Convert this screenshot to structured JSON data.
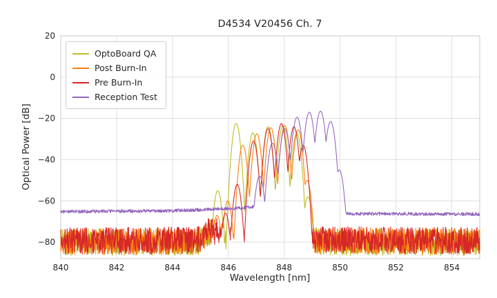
{
  "chart_data": {
    "type": "line",
    "title": "D4534 V20456 Ch. 7",
    "xlabel": "Wavelength [nm]",
    "ylabel": "Optical Power [dB]",
    "xlim": [
      840,
      855
    ],
    "ylim": [
      -88,
      20
    ],
    "x_ticks": [
      840,
      842,
      844,
      846,
      848,
      850,
      852,
      854
    ],
    "y_ticks": [
      20,
      0,
      -20,
      -40,
      -60,
      -80
    ],
    "grid": true,
    "grid_color": "#dcdcdc",
    "frame_color": "#cccccc",
    "text_color": "#262626",
    "legend_position": "upper left",
    "sample_step_nm": 0.01,
    "series": [
      {
        "name": "OptoBoard QA",
        "color": "#bcbd22",
        "mode_k": 450,
        "noise_spread_db": 13,
        "noise_floor_db": [
          [
            840,
            -80
          ],
          [
            844.9,
            -80
          ],
          [
            845.25,
            -75.5
          ],
          [
            845.65,
            -74.5
          ],
          [
            846.1,
            -79
          ],
          [
            848.95,
            -78.5
          ],
          [
            849.3,
            -80
          ],
          [
            855,
            -80
          ]
        ],
        "peaks_nm_db": [
          [
            845.62,
            -55
          ],
          [
            846.28,
            -22.5
          ],
          [
            846.88,
            -27
          ],
          [
            847.42,
            -24
          ],
          [
            847.95,
            -23.5
          ],
          [
            848.45,
            -27
          ],
          [
            848.85,
            -58
          ]
        ]
      },
      {
        "name": "Post Burn-In",
        "color": "#ff7f0e",
        "mode_k": 450,
        "noise_spread_db": 13,
        "noise_floor_db": [
          [
            840,
            -80
          ],
          [
            844.9,
            -79.5
          ],
          [
            845.3,
            -75
          ],
          [
            845.75,
            -75.5
          ],
          [
            846.2,
            -79
          ],
          [
            855,
            -79.8
          ]
        ],
        "peaks_nm_db": [
          [
            845.6,
            -67
          ],
          [
            845.98,
            -60
          ],
          [
            846.52,
            -33
          ],
          [
            847.02,
            -27.5
          ],
          [
            847.52,
            -24.5
          ],
          [
            848.02,
            -23.5
          ],
          [
            848.5,
            -25.5
          ],
          [
            848.82,
            -50
          ]
        ]
      },
      {
        "name": "Pre Burn-In",
        "color": "#d62728",
        "mode_k": 450,
        "noise_spread_db": 13,
        "noise_floor_db": [
          [
            840,
            -79.5
          ],
          [
            844.9,
            -79
          ],
          [
            845.3,
            -74.5
          ],
          [
            845.85,
            -75
          ],
          [
            846.3,
            -78.5
          ],
          [
            855,
            -79.3
          ]
        ],
        "peaks_nm_db": [
          [
            845.9,
            -66
          ],
          [
            846.32,
            -52
          ],
          [
            846.9,
            -31
          ],
          [
            847.42,
            -25
          ],
          [
            847.9,
            -22.5
          ],
          [
            848.35,
            -24
          ],
          [
            848.68,
            -33
          ]
        ]
      },
      {
        "name": "Reception Test",
        "color": "#9467bd",
        "mode_k": 380,
        "noise_spread_db": 1.6,
        "noise_floor_db": [
          [
            840,
            -65.2
          ],
          [
            844,
            -64.8
          ],
          [
            846,
            -63.8
          ],
          [
            847.05,
            -62.8
          ],
          [
            849.9,
            -63.5
          ],
          [
            850.15,
            -66.2
          ],
          [
            855,
            -66.4
          ]
        ],
        "peaks_nm_db": [
          [
            847.12,
            -48
          ],
          [
            847.58,
            -32
          ],
          [
            848.02,
            -25
          ],
          [
            848.46,
            -19.5
          ],
          [
            848.9,
            -17
          ],
          [
            849.3,
            -16.5
          ],
          [
            849.66,
            -21.5
          ],
          [
            849.97,
            -45
          ]
        ]
      }
    ]
  }
}
